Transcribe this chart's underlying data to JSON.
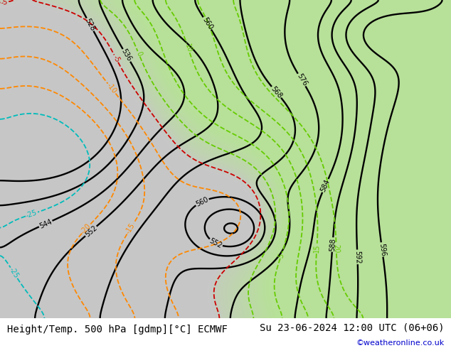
{
  "title_left": "Height/Temp. 500 hPa [gdmp][°C] ECMWF",
  "title_right": "Su 23-06-2024 12:00 UTC (06+06)",
  "copyright": "©weatheronline.co.uk",
  "height_line_color": "#000000",
  "temp_orange_color": "#ff8800",
  "temp_cyan_color": "#00bbbb",
  "temp_green_color": "#66cc00",
  "temp_red_color": "#cc0000",
  "font_size_title": 10,
  "font_size_copyright": 8,
  "bottom_bar_color": "white",
  "gray_bg": [
    0.78,
    0.78,
    0.78
  ],
  "green_bg": [
    0.72,
    0.88,
    0.6
  ]
}
